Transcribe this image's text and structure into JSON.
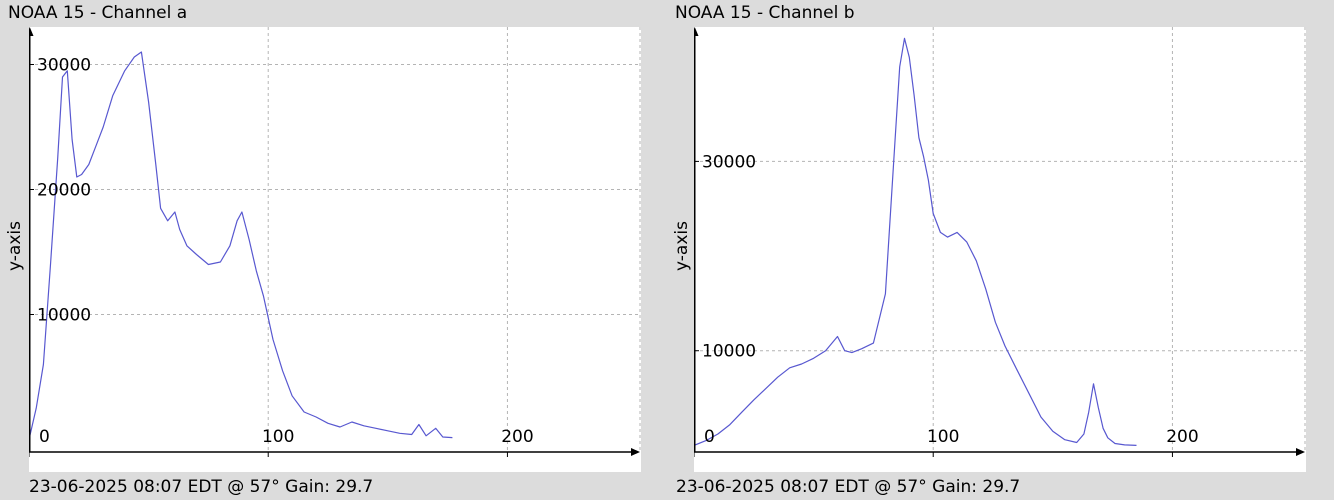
{
  "chart_data": [
    {
      "type": "line",
      "title": "NOAA 15 - Channel a",
      "footer": "23-06-2025 08:07 EDT @ 57° Gain: 29.7",
      "ylabel": "y-axis",
      "xlim": [
        0,
        255
      ],
      "ylim": [
        -1000,
        33000
      ],
      "x_ticks": [
        0,
        100,
        200
      ],
      "y_ticks": [
        10000,
        20000,
        30000
      ],
      "x_tick_labels": [
        "0",
        "100",
        "200"
      ],
      "y_tick_labels": [
        "10000",
        "20000",
        "30000"
      ],
      "grid": true,
      "line_color": "#5858d0",
      "series": [
        {
          "x": [
            0,
            3,
            6,
            9,
            12,
            14,
            16,
            18,
            20,
            22,
            25,
            28,
            31,
            35,
            40,
            44,
            47,
            50,
            53,
            55,
            58,
            61,
            63,
            66,
            70,
            75,
            80,
            84,
            87,
            89,
            92,
            95,
            98,
            102,
            106,
            110,
            115,
            120,
            125,
            130,
            135,
            140,
            145,
            150,
            155,
            160,
            163,
            166,
            170,
            173,
            177
          ],
          "y": [
            0,
            2500,
            6000,
            14000,
            22500,
            29000,
            29500,
            24000,
            21000,
            21200,
            22000,
            23500,
            25000,
            27500,
            29500,
            30600,
            31000,
            27000,
            22000,
            18500,
            17500,
            18200,
            16800,
            15500,
            14800,
            14000,
            14200,
            15500,
            17500,
            18200,
            16000,
            13500,
            11500,
            8000,
            5500,
            3500,
            2200,
            1800,
            1300,
            1000,
            1400,
            1100,
            900,
            700,
            500,
            400,
            1200,
            300,
            900,
            200,
            150
          ]
        }
      ]
    },
    {
      "type": "line",
      "title": "NOAA 15 - Channel b",
      "footer": "23-06-2025 08:07 EDT @ 57° Gain: 29.7",
      "ylabel": "y-axis",
      "xlim": [
        0,
        255
      ],
      "ylim": [
        -700,
        44200
      ],
      "x_ticks": [
        0,
        100,
        200
      ],
      "y_ticks": [
        10000,
        30000
      ],
      "x_tick_labels": [
        "0",
        "100",
        "200"
      ],
      "y_tick_labels": [
        "10000",
        "30000"
      ],
      "grid": true,
      "line_color": "#5858d0",
      "series": [
        {
          "x": [
            0,
            5,
            10,
            15,
            20,
            25,
            30,
            35,
            40,
            45,
            50,
            55,
            60,
            63,
            66,
            70,
            75,
            80,
            84,
            86,
            88,
            90,
            92,
            94,
            96,
            98,
            100,
            103,
            106,
            110,
            114,
            118,
            122,
            126,
            130,
            135,
            140,
            145,
            150,
            155,
            160,
            163,
            165,
            167,
            169,
            171,
            173,
            176,
            180,
            185
          ],
          "y": [
            0,
            500,
            1200,
            2200,
            3500,
            4800,
            6000,
            7200,
            8200,
            8600,
            9200,
            10000,
            11500,
            10000,
            9800,
            10200,
            10800,
            16000,
            32000,
            40000,
            43000,
            41000,
            37000,
            32500,
            30500,
            28000,
            24500,
            22500,
            22000,
            22500,
            21500,
            19500,
            16500,
            13000,
            10500,
            8000,
            5500,
            3000,
            1500,
            600,
            300,
            1200,
            3500,
            6500,
            4000,
            1800,
            800,
            200,
            50,
            0
          ]
        }
      ]
    }
  ]
}
